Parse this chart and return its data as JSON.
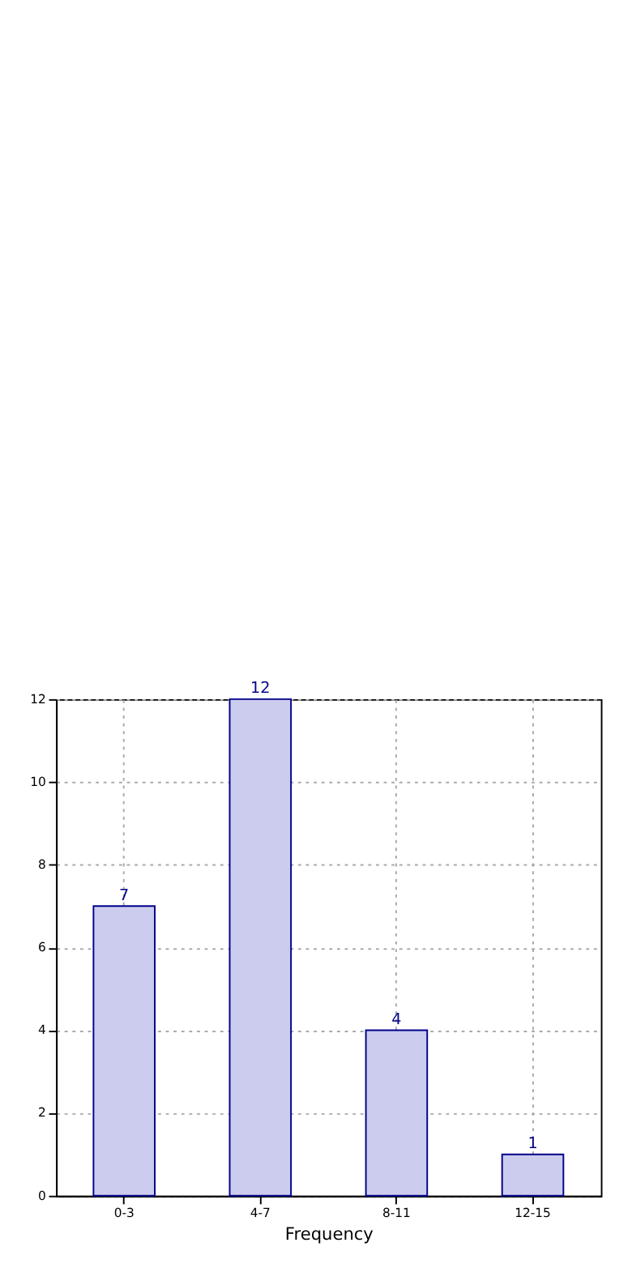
{
  "chart_data": {
    "type": "bar",
    "xlabel": "Frequency",
    "categories": [
      "0-3",
      "4-7",
      "8-11",
      "12-15"
    ],
    "series": [
      {
        "color": "#ccccee",
        "values": [
          7,
          12,
          4,
          1
        ]
      }
    ],
    "ylim": [
      0,
      12
    ],
    "yticks": [
      0,
      2,
      4,
      6,
      8,
      10,
      12
    ],
    "grid": true,
    "data_labels": true
  }
}
